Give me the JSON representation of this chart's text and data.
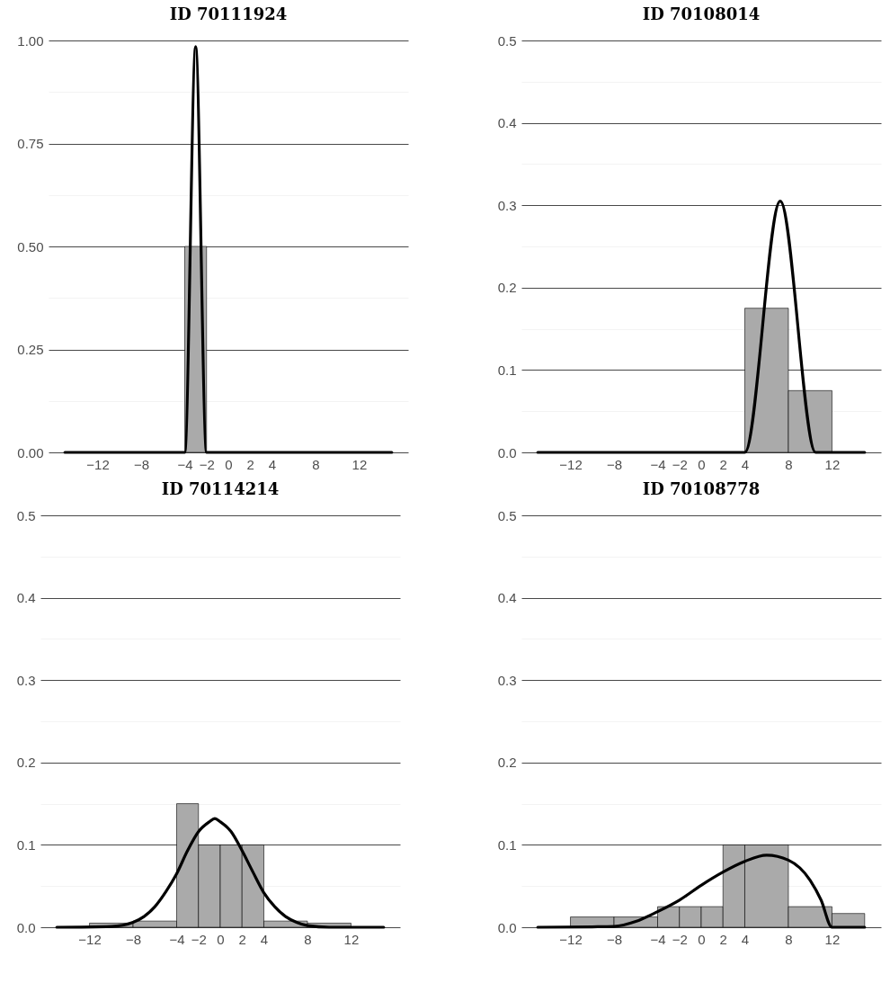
{
  "chart_data": [
    {
      "type": "histogram",
      "title": "ID 70111924",
      "bins": [
        -4,
        -2
      ],
      "xlim": [
        -16.5,
        16.5
      ],
      "ylim": [
        0,
        1
      ],
      "xticks": [
        -12,
        -8,
        -4,
        -2,
        0,
        2,
        4,
        8,
        12
      ],
      "yticks": [
        {
          "value": 0,
          "label": "0.00"
        },
        {
          "value": 0.125,
          "label": null
        },
        {
          "value": 0.25,
          "label": "0.25"
        },
        {
          "value": 0.375,
          "label": null
        },
        {
          "value": 0.5,
          "label": "0.50"
        },
        {
          "value": 0.625,
          "label": null
        },
        {
          "value": 0.75,
          "label": "0.75"
        },
        {
          "value": 0.875,
          "label": null
        },
        {
          "value": 1,
          "label": "1.00"
        }
      ],
      "grid": "y",
      "series": [
        {
          "color": "#aaaaaa",
          "values": [
            0.5
          ]
        },
        {
          "type": "line",
          "color": "#000000",
          "x": [
            -15,
            -4,
            -3,
            -2,
            15
          ],
          "values": [
            0,
            0,
            0.985,
            0,
            0
          ]
        }
      ]
    },
    {
      "type": "histogram",
      "title": "ID 70108014",
      "bins": [
        4,
        8,
        12
      ],
      "xlim": [
        -16.5,
        16.5
      ],
      "ylim": [
        0,
        0.5
      ],
      "xticks": [
        -12,
        -8,
        -4,
        -2,
        0,
        2,
        4,
        8,
        12
      ],
      "yticks": [
        {
          "value": 0,
          "label": "0.0"
        },
        {
          "value": 0.05,
          "label": null
        },
        {
          "value": 0.1,
          "label": "0.1"
        },
        {
          "value": 0.15,
          "label": null
        },
        {
          "value": 0.2,
          "label": "0.2"
        },
        {
          "value": 0.25,
          "label": null
        },
        {
          "value": 0.3,
          "label": "0.3"
        },
        {
          "value": 0.35,
          "label": null
        },
        {
          "value": 0.4,
          "label": "0.4"
        },
        {
          "value": 0.45,
          "label": null
        },
        {
          "value": 0.5,
          "label": "0.5"
        }
      ],
      "grid": "y",
      "series": [
        {
          "color": "#aaaaaa",
          "values": [
            0.175,
            0.075
          ]
        },
        {
          "type": "line",
          "color": "#000000",
          "x": [
            -15,
            4,
            7.25,
            10.5,
            15
          ],
          "values": [
            0,
            0,
            0.305,
            0,
            0
          ]
        }
      ]
    },
    {
      "type": "histogram",
      "title": "ID 70114214",
      "bins": [
        -12,
        -8,
        -4,
        -2,
        0,
        2,
        4,
        8,
        12
      ],
      "xlim": [
        -16.5,
        16.5
      ],
      "ylim": [
        0,
        0.5
      ],
      "xticks": [
        -12,
        -8,
        -4,
        -2,
        0,
        2,
        4,
        8,
        12
      ],
      "yticks": [
        {
          "value": 0,
          "label": "0.0"
        },
        {
          "value": 0.05,
          "label": null
        },
        {
          "value": 0.1,
          "label": "0.1"
        },
        {
          "value": 0.15,
          "label": null
        },
        {
          "value": 0.2,
          "label": "0.2"
        },
        {
          "value": 0.25,
          "label": null
        },
        {
          "value": 0.3,
          "label": "0.3"
        },
        {
          "value": 0.35,
          "label": null
        },
        {
          "value": 0.4,
          "label": "0.4"
        },
        {
          "value": 0.45,
          "label": null
        },
        {
          "value": 0.5,
          "label": "0.5"
        }
      ],
      "grid": "y",
      "series": [
        {
          "color": "#aaaaaa",
          "values": [
            0.005,
            0.0075,
            0.15,
            0.1,
            0.1,
            0.1,
            0.0075,
            0.005
          ]
        },
        {
          "type": "line",
          "color": "#000000",
          "x": [
            -15,
            -10,
            -8,
            -7,
            -6,
            -5,
            -4,
            -3,
            -2,
            -1,
            -0.5,
            0,
            1,
            2,
            3,
            4,
            5,
            6,
            7,
            8,
            10,
            15
          ],
          "values": [
            0,
            0.001,
            0.006,
            0.013,
            0.025,
            0.043,
            0.065,
            0.093,
            0.116,
            0.128,
            0.132,
            0.128,
            0.116,
            0.093,
            0.067,
            0.042,
            0.025,
            0.013,
            0.006,
            0.002,
            0,
            0
          ]
        }
      ]
    },
    {
      "type": "histogram",
      "title": "ID 70108778",
      "bins": [
        -12,
        -8,
        -4,
        -2,
        0,
        2,
        4,
        8,
        12,
        15
      ],
      "xlim": [
        -16.5,
        16.5
      ],
      "ylim": [
        0,
        0.5
      ],
      "xticks": [
        -12,
        -8,
        -4,
        -2,
        0,
        2,
        4,
        8,
        12
      ],
      "yticks": [
        {
          "value": 0,
          "label": "0.0"
        },
        {
          "value": 0.05,
          "label": null
        },
        {
          "value": 0.1,
          "label": "0.1"
        },
        {
          "value": 0.15,
          "label": null
        },
        {
          "value": 0.2,
          "label": "0.2"
        },
        {
          "value": 0.25,
          "label": null
        },
        {
          "value": 0.3,
          "label": "0.3"
        },
        {
          "value": 0.35,
          "label": null
        },
        {
          "value": 0.4,
          "label": "0.4"
        },
        {
          "value": 0.45,
          "label": null
        },
        {
          "value": 0.5,
          "label": "0.5"
        }
      ],
      "grid": "y",
      "series": [
        {
          "color": "#aaaaaa",
          "values": [
            0.0125,
            0.0125,
            0.025,
            0.025,
            0.025,
            0.1,
            0.1,
            0.025,
            0.0167
          ]
        },
        {
          "type": "line",
          "color": "#000000",
          "x": [
            -15,
            -10,
            -8,
            -6,
            -4,
            -2,
            0,
            2,
            4,
            6,
            8,
            10,
            11,
            12,
            15
          ],
          "values": [
            0,
            0.0005,
            0.001,
            0.007,
            0.019,
            0.033,
            0.051,
            0.067,
            0.08,
            0.0875,
            0.0815,
            0.057,
            0.033,
            0,
            0
          ]
        }
      ]
    }
  ]
}
